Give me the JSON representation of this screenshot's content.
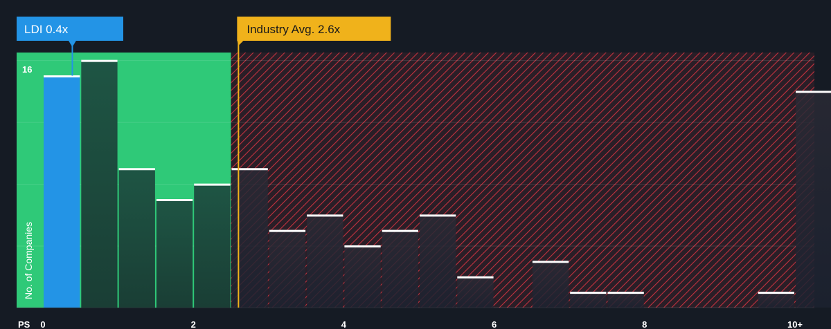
{
  "chart_data": {
    "type": "bar",
    "xlabel": "PS",
    "ylabel": "No. of Companies",
    "x_ticks": [
      "0",
      "2",
      "4",
      "6",
      "8",
      "10+"
    ],
    "y_ticks": [
      "16"
    ],
    "ylim": [
      0,
      16.5
    ],
    "bin_width": 0.5,
    "bins": [
      {
        "x": 0.0,
        "value": 15
      },
      {
        "x": 0.5,
        "value": 16
      },
      {
        "x": 1.0,
        "value": 9
      },
      {
        "x": 1.5,
        "value": 7
      },
      {
        "x": 2.0,
        "value": 8
      },
      {
        "x": 2.5,
        "value": 9
      },
      {
        "x": 3.0,
        "value": 5
      },
      {
        "x": 3.5,
        "value": 6
      },
      {
        "x": 4.0,
        "value": 4
      },
      {
        "x": 4.5,
        "value": 5
      },
      {
        "x": 5.0,
        "value": 6
      },
      {
        "x": 5.5,
        "value": 2
      },
      {
        "x": 6.0,
        "value": 0
      },
      {
        "x": 6.5,
        "value": 3
      },
      {
        "x": 7.0,
        "value": 1
      },
      {
        "x": 7.5,
        "value": 1
      },
      {
        "x": 8.0,
        "value": 0
      },
      {
        "x": 8.5,
        "value": 0
      },
      {
        "x": 9.0,
        "value": 0
      },
      {
        "x": 9.5,
        "value": 1
      },
      {
        "x": 10.0,
        "value": 14
      }
    ],
    "highlight": {
      "label": "LDI 0.4x",
      "value": 0.4,
      "bin_x": 0.0,
      "color": "#2394e6"
    },
    "industry_avg": {
      "label": "Industry Avg. 2.6x",
      "value": 2.6,
      "color": "#f0b21b"
    },
    "fair_zone_upper": 2.5,
    "colors": {
      "fair_zone": "#2fc978",
      "overvalued_zone": "#e0414d",
      "bar_fill": "#1f4a3c",
      "bar_top": "#ffffff",
      "background": "#151b24"
    },
    "grid": true
  }
}
